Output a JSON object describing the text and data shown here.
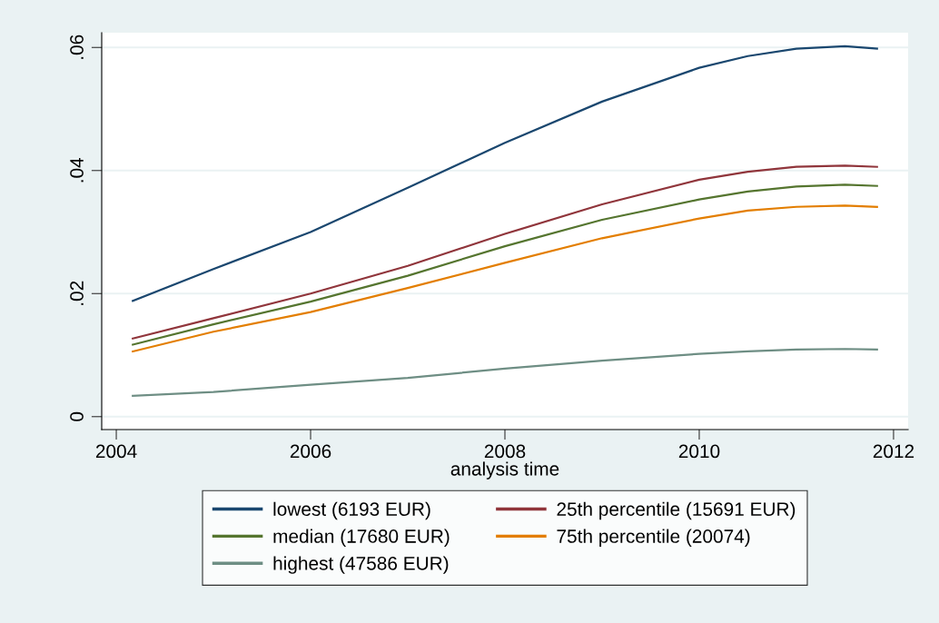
{
  "chart_data": {
    "type": "line",
    "xlabel": "analysis time",
    "xlim": [
      2003.85,
      2012.15
    ],
    "xticks": [
      2004,
      2006,
      2008,
      2010,
      2012
    ],
    "ylim": [
      -0.0021,
      0.0624
    ],
    "yticks": [
      {
        "value": 0,
        "label": "0"
      },
      {
        "value": 0.02,
        "label": ".02"
      },
      {
        "value": 0.04,
        "label": ".04"
      },
      {
        "value": 0.06,
        "label": ".06"
      }
    ],
    "grid": "y",
    "legend": "bottom",
    "marker": "none",
    "line_style": "solid",
    "x": [
      2004.17,
      2005,
      2006,
      2007,
      2008,
      2009,
      2010,
      2010.5,
      2011,
      2011.5,
      2011.83
    ],
    "series": [
      {
        "name": "lowest (6193 EUR)",
        "color": "#1a476f",
        "values": [
          0.0188,
          0.024,
          0.03,
          0.0372,
          0.0445,
          0.0512,
          0.0567,
          0.0586,
          0.0598,
          0.0602,
          0.0598
        ]
      },
      {
        "name": "25th percentile (15691 EUR)",
        "color": "#90353b",
        "values": [
          0.0127,
          0.016,
          0.02,
          0.0245,
          0.0297,
          0.0345,
          0.0385,
          0.0398,
          0.0406,
          0.0408,
          0.0406
        ]
      },
      {
        "name": "median (17680 EUR)",
        "color": "#55752f",
        "values": [
          0.0117,
          0.015,
          0.0187,
          0.0229,
          0.0277,
          0.032,
          0.0353,
          0.0366,
          0.0374,
          0.0377,
          0.0375
        ]
      },
      {
        "name": "75th percentile (20074)",
        "color": "#e37e00",
        "values": [
          0.0106,
          0.0138,
          0.017,
          0.0209,
          0.025,
          0.029,
          0.0322,
          0.0335,
          0.0341,
          0.0343,
          0.0341
        ]
      },
      {
        "name": "highest (47586 EUR)",
        "color": "#6e8e84",
        "values": [
          0.0034,
          0.004,
          0.0052,
          0.0063,
          0.0078,
          0.0091,
          0.0102,
          0.0106,
          0.0109,
          0.011,
          0.0109
        ]
      }
    ]
  }
}
